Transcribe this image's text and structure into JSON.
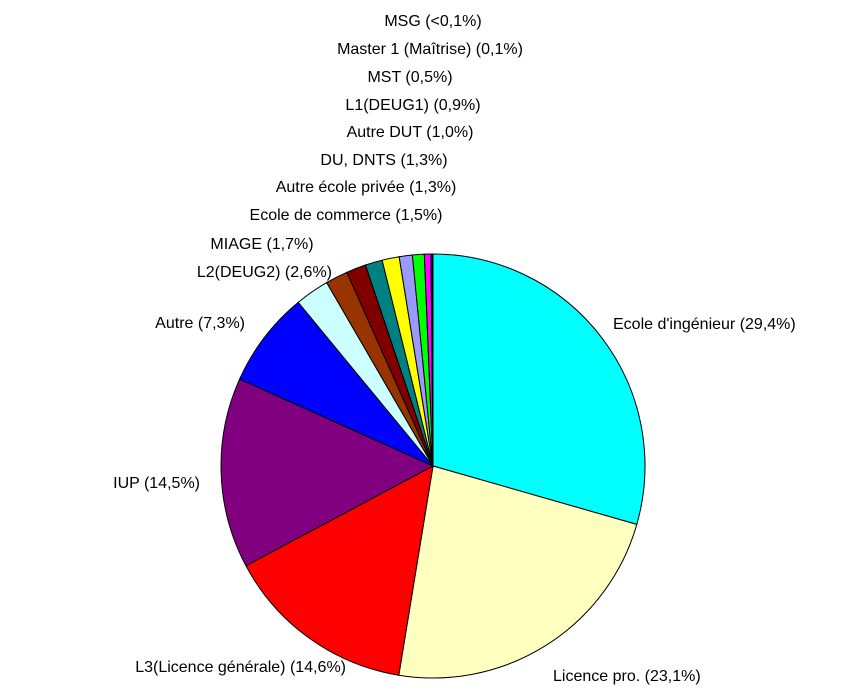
{
  "chart_data": {
    "type": "pie",
    "categories": [
      "Ecole d'ingénieur",
      "Licence pro.",
      "L3(Licence générale)",
      "IUP",
      "Autre",
      "L2(DEUG2)",
      "MIAGE",
      "Ecole de commerce",
      "Autre école privée",
      "DU, DNTS",
      "Autre DUT",
      "L1(DEUG1)",
      "MST",
      "Master 1 (Maîtrise)",
      "MSG"
    ],
    "values": [
      29.4,
      23.1,
      14.6,
      14.5,
      7.3,
      2.6,
      1.7,
      1.5,
      1.3,
      1.3,
      1.0,
      0.9,
      0.5,
      0.1,
      0.05
    ],
    "value_labels": [
      "(29,4%)",
      "(23,1%)",
      "(14,6%)",
      "(14,5%)",
      "(7,3%)",
      "(2,6%)",
      "(1,7%)",
      "(1,5%)",
      "(1,3%)",
      "(1,3%)",
      "(1,0%)",
      "(0,9%)",
      "(0,5%)",
      "(0,1%)",
      "(<0,1%)"
    ],
    "colors": [
      "#00ffff",
      "#ffffc0",
      "#ff0000",
      "#800080",
      "#0000ff",
      "#ccffff",
      "#993300",
      "#800000",
      "#008080",
      "#ffff00",
      "#9999ff",
      "#00ff00",
      "#ff00ff",
      "#3366ff",
      "#cc99ff"
    ]
  }
}
